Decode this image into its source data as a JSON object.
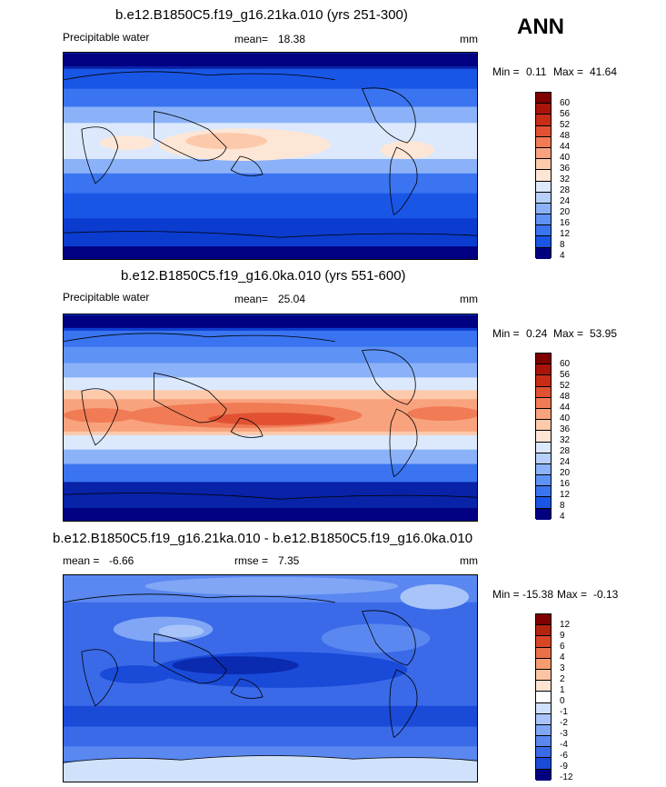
{
  "season": "ANN",
  "colors": {
    "pw": [
      "#000080",
      "#0822a8",
      "#0b3ccf",
      "#1a56e6",
      "#3a74f0",
      "#5e92f5",
      "#8bb2f8",
      "#b6d0fa",
      "#dce9fc",
      "#fde6d6",
      "#fcc9ab",
      "#f8a37e",
      "#f07b55",
      "#e25232",
      "#c92d16",
      "#a9150a",
      "#7f0000"
    ],
    "diff": [
      "#000080",
      "#0a2bb0",
      "#1a4ad8",
      "#3a6ae8",
      "#5a88f0",
      "#80a6f5",
      "#a8c4f8",
      "#d0e1fb",
      "#fde4d2",
      "#fbc4a2",
      "#f59c72",
      "#ea7048",
      "#d84626",
      "#b32410",
      "#7f0000"
    ]
  },
  "chart_data": [
    {
      "type": "heatmap",
      "title": "b.e12.B1850C5.f19_g16.21ka.010 (yrs 251-300)",
      "left_label": "Precipitable water",
      "mean_label": "mean=",
      "mean": "18.38",
      "units": "mm",
      "min_label": "Min =",
      "min": "0.11",
      "max_label": "Max =",
      "max": "41.64",
      "levels": [
        "60",
        "56",
        "52",
        "48",
        "44",
        "40",
        "36",
        "32",
        "28",
        "24",
        "20",
        "16",
        "12",
        "8",
        "4"
      ]
    },
    {
      "type": "heatmap",
      "title": "b.e12.B1850C5.f19_g16.0ka.010 (yrs 551-600)",
      "left_label": "Precipitable water",
      "mean_label": "mean=",
      "mean": "25.04",
      "units": "mm",
      "min_label": "Min =",
      "min": "0.24",
      "max_label": "Max =",
      "max": "53.95",
      "levels": [
        "60",
        "56",
        "52",
        "48",
        "44",
        "40",
        "36",
        "32",
        "28",
        "24",
        "20",
        "16",
        "12",
        "8",
        "4"
      ]
    },
    {
      "type": "heatmap",
      "title": "b.e12.B1850C5.f19_g16.21ka.010 - b.e12.B1850C5.f19_g16.0ka.010",
      "left_label": "mean =",
      "mean": "-6.66",
      "rmse_label": "rmse =",
      "rmse": "7.35",
      "units": "mm",
      "min_label": "Min =",
      "min": "-15.38",
      "max_label": "Max =",
      "max": "-0.13",
      "levels": [
        "12",
        "9",
        "6",
        "4",
        "3",
        "2",
        "1",
        "0",
        "-1",
        "-2",
        "-3",
        "-4",
        "-6",
        "-9",
        "-12"
      ]
    }
  ]
}
